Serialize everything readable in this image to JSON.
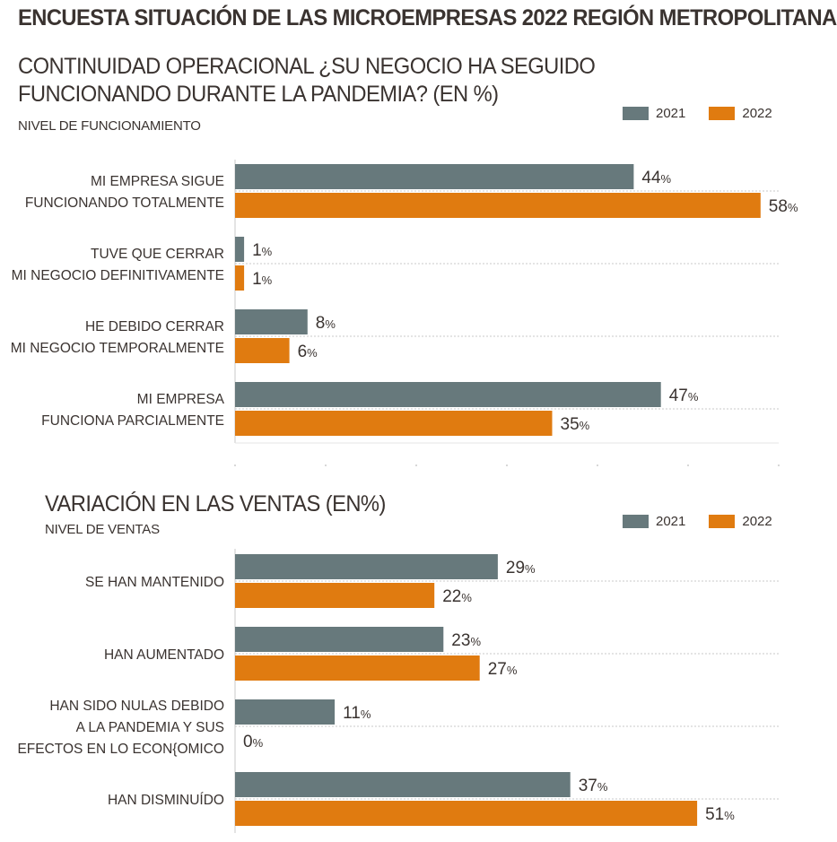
{
  "header": {
    "title": "ENCUESTA SITUACIÓN DE LAS MICROEMPRESAS 2022 REGIÓN METROPOLITANA"
  },
  "colors": {
    "series_2021": "#67797c",
    "series_2022": "#e07b10",
    "text": "#3a3330",
    "grid": "#c8c8c8"
  },
  "chart_data": [
    {
      "type": "bar",
      "orientation": "horizontal",
      "title_lines": [
        "CONTINUIDAD OPERACIONAL ¿SU NEGOCIO HA SEGUIDO",
        "FUNCIONANDO DURANTE LA PANDEMIA? (EN %)"
      ],
      "subtitle": "NIVEL DE FUNCIONAMIENTO",
      "legend_position": "top-right",
      "unit_suffix": "%",
      "xlim": [
        0,
        60
      ],
      "categories": [
        [
          "MI EMPRESA SIGUE",
          "FUNCIONANDO TOTALMENTE"
        ],
        [
          "TUVE QUE CERRAR",
          "MI NEGOCIO DEFINITIVAMENTE"
        ],
        [
          "HE DEBIDO CERRAR",
          "MI NEGOCIO TEMPORALMENTE"
        ],
        [
          "MI EMPRESA",
          "FUNCIONA PARCIALMENTE"
        ]
      ],
      "series": [
        {
          "name": "2021",
          "values": [
            44,
            1,
            8,
            47
          ]
        },
        {
          "name": "2022",
          "values": [
            58,
            1,
            6,
            35
          ]
        }
      ]
    },
    {
      "type": "bar",
      "orientation": "horizontal",
      "title_lines": [
        "VARIACIÓN EN LAS VENTAS (EN%)"
      ],
      "subtitle": "NIVEL DE VENTAS",
      "legend_position": "top-right",
      "unit_suffix": "%",
      "xlim": [
        0,
        60
      ],
      "categories": [
        [
          "SE HAN MANTENIDO"
        ],
        [
          "HAN AUMENTADO"
        ],
        [
          "HAN SIDO NULAS DEBIDO",
          "A LA PANDEMIA Y SUS",
          "EFECTOS EN LO ECON{OMICO"
        ],
        [
          "HAN DISMINUÍDO"
        ]
      ],
      "series": [
        {
          "name": "2021",
          "values": [
            29,
            23,
            11,
            37
          ]
        },
        {
          "name": "2022",
          "values": [
            22,
            27,
            0,
            51
          ]
        }
      ]
    }
  ]
}
